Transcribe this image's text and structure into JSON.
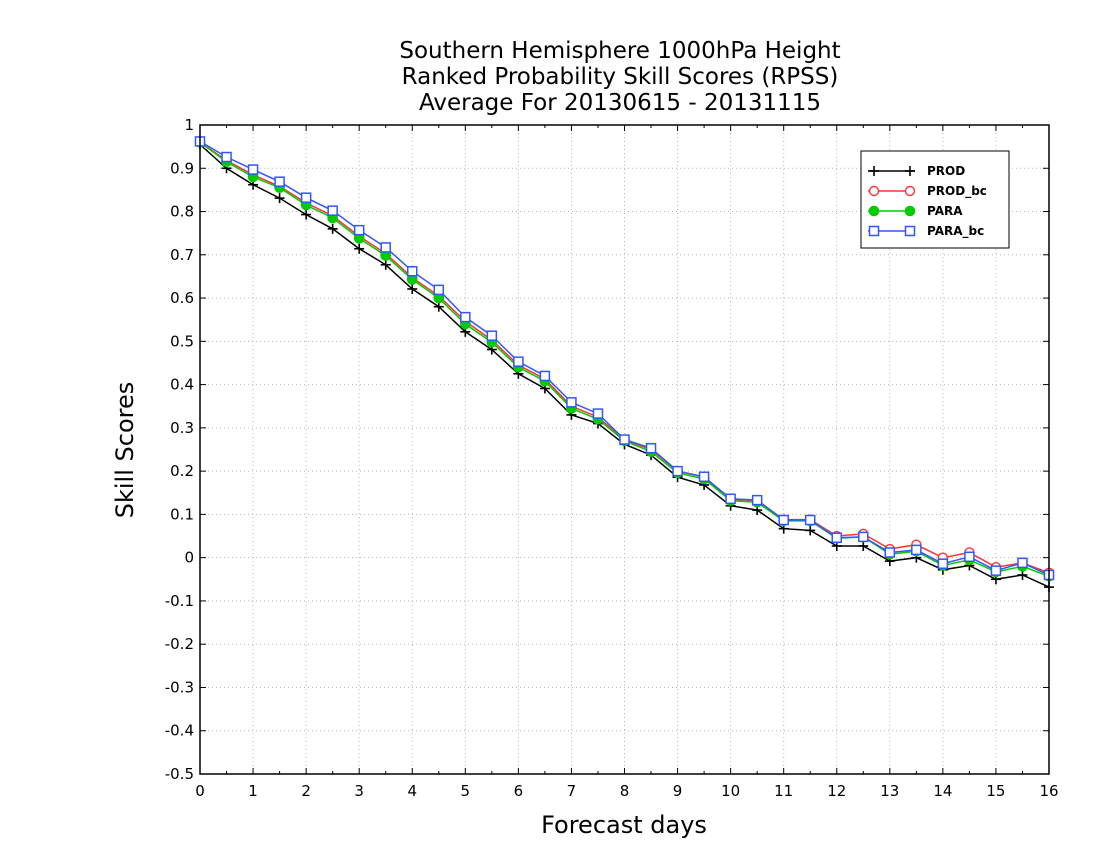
{
  "chart_data": {
    "type": "line",
    "title_lines": [
      "Southern Hemisphere 1000hPa Height",
      "Ranked Probability Skill Scores (RPSS)",
      "Average For 20130615 - 20131115"
    ],
    "xlabel": "Forecast days",
    "ylabel": "Skill Scores",
    "xlim": [
      0,
      16
    ],
    "ylim": [
      -0.5,
      1
    ],
    "x_ticks": [
      "0",
      "1",
      "2",
      "3",
      "4",
      "5",
      "6",
      "7",
      "8",
      "9",
      "10",
      "11",
      "12",
      "13",
      "14",
      "15",
      "16"
    ],
    "y_ticks": [
      "-0.5",
      "-0.4",
      "-0.3",
      "-0.2",
      "-0.1",
      "0",
      "0.1",
      "0.2",
      "0.3",
      "0.4",
      "0.5",
      "0.6",
      "0.7",
      "0.8",
      "0.9",
      "1"
    ],
    "grid": true,
    "legend_position": "top-right",
    "x": [
      0,
      0.5,
      1,
      1.5,
      2,
      2.5,
      3,
      3.5,
      4,
      4.5,
      5,
      5.5,
      6,
      6.5,
      7,
      7.5,
      8,
      8.5,
      9,
      9.5,
      10,
      10.5,
      11,
      11.5,
      12,
      12.5,
      13,
      13.5,
      14,
      14.5,
      15,
      15.5,
      16
    ],
    "series": [
      {
        "name": "PROD",
        "color": "#000000",
        "marker": "plus",
        "values": [
          0.955,
          0.9,
          0.862,
          0.831,
          0.793,
          0.76,
          0.714,
          0.677,
          0.621,
          0.58,
          0.522,
          0.481,
          0.425,
          0.391,
          0.33,
          0.31,
          0.262,
          0.237,
          0.186,
          0.168,
          0.12,
          0.11,
          0.067,
          0.063,
          0.027,
          0.027,
          -0.008,
          0.0,
          -0.028,
          -0.018,
          -0.05,
          -0.04,
          -0.068
        ]
      },
      {
        "name": "PROD_bc",
        "color": "#ff3333",
        "marker": "circle",
        "values": [
          0.96,
          0.918,
          0.885,
          0.858,
          0.82,
          0.79,
          0.743,
          0.703,
          0.647,
          0.605,
          0.546,
          0.503,
          0.445,
          0.413,
          0.35,
          0.325,
          0.272,
          0.25,
          0.2,
          0.186,
          0.135,
          0.132,
          0.088,
          0.088,
          0.05,
          0.055,
          0.02,
          0.03,
          0.0,
          0.012,
          -0.022,
          -0.012,
          -0.035
        ]
      },
      {
        "name": "PARA",
        "color": "#00cc00",
        "marker": "filled-circle",
        "values": [
          0.96,
          0.915,
          0.88,
          0.855,
          0.815,
          0.785,
          0.738,
          0.698,
          0.643,
          0.6,
          0.54,
          0.498,
          0.44,
          0.408,
          0.345,
          0.32,
          0.27,
          0.245,
          0.196,
          0.182,
          0.132,
          0.128,
          0.085,
          0.085,
          0.045,
          0.048,
          0.008,
          0.015,
          -0.018,
          -0.005,
          -0.033,
          -0.02,
          -0.043
        ]
      },
      {
        "name": "PARA_bc",
        "color": "#3355ff",
        "marker": "square",
        "values": [
          0.962,
          0.926,
          0.897,
          0.869,
          0.832,
          0.802,
          0.757,
          0.717,
          0.662,
          0.619,
          0.556,
          0.513,
          0.453,
          0.42,
          0.359,
          0.333,
          0.273,
          0.253,
          0.2,
          0.187,
          0.136,
          0.133,
          0.087,
          0.087,
          0.046,
          0.048,
          0.012,
          0.018,
          -0.014,
          0.002,
          -0.03,
          -0.012,
          -0.04
        ]
      }
    ]
  }
}
